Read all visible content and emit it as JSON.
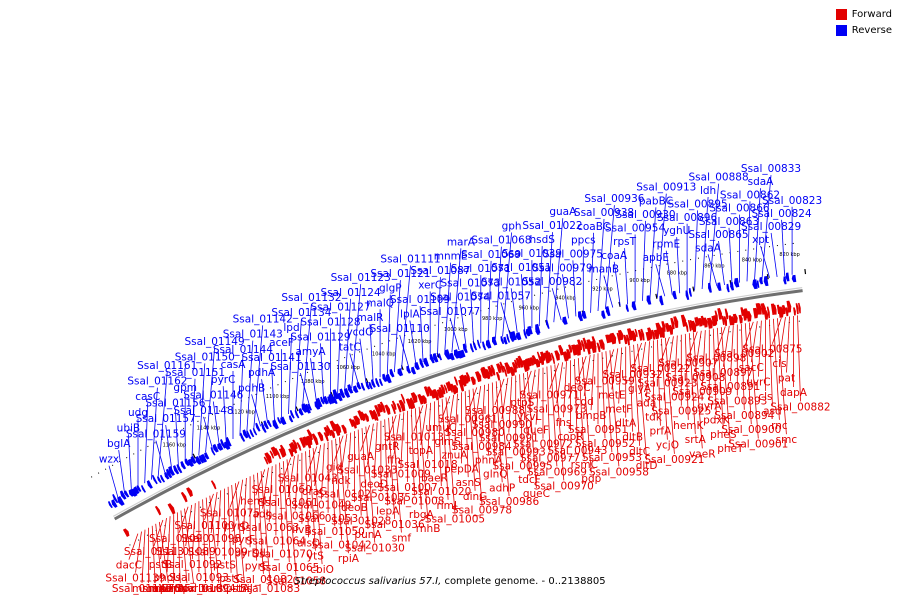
{
  "legend": {
    "items": [
      {
        "label": "Forward",
        "color": "#e20000"
      },
      {
        "label": "Reverse",
        "color": "#0000f5"
      }
    ]
  },
  "caption": {
    "organism": "Streptococcus salivarius 57.I,",
    "rest": " complete genome. - 0..2138805"
  },
  "scale_labels": [
    "1160 kbp",
    "1140 kbp",
    "1120 kbp",
    "1100 kbp",
    "1080 kbp",
    "1060 kbp",
    "1040 kbp",
    "1020 kbp",
    "1000 kbp",
    "980 kbp",
    "960 kbp",
    "940 kbp",
    "920 kbp",
    "900 kbp",
    "880 kbp",
    "860 kbp",
    "840 kbp",
    "820 kbp"
  ],
  "colors": {
    "forward": "#e20000",
    "reverse": "#0000f5",
    "backbone": "#7a7a7a"
  },
  "reverse_labels": [
    "wzx",
    "bglA",
    "ubiB",
    "udg",
    "casC",
    "Ssal_01162",
    "Ssal_01161",
    "Ssal_01159",
    "Ssal_01157",
    "Ssal_01156",
    "gpm",
    "Ssal_01151",
    "Ssal_01150",
    "Ssal_01149",
    "Ssal_01148",
    "Ssal_01146",
    "pyrC",
    "casA",
    "Ssal_01144",
    "Ssal_01143",
    "Ssal_01142",
    "pdhB",
    "pdhA",
    "Ssal_01141",
    "aceF",
    "lpd",
    "Ssal_01134",
    "Ssal_01132",
    "Ssal_01130",
    "amyA",
    "Ssal_01129",
    "Ssal_01128",
    "Ssal_01127",
    "Ssal_01124",
    "Ssal_01123",
    "tatC",
    "ycdO",
    "malR",
    "malQ",
    "glgP",
    "Ssal_01121",
    "Ssal_01111",
    "Ssal_01110",
    "lplA",
    "Ssal_01109",
    "xerC",
    "Ssal_01087",
    "mnmE",
    "marA",
    "Ssal_01077",
    "Ssal_01074",
    "Ssal_01073",
    "Ssal_01071",
    "Ssal_01069",
    "Ssal_01068",
    "gph",
    "Ssal_01057",
    "Ssal_01052",
    "Ssal_01051",
    "Ssal_01039",
    "hsdS",
    "Ssal_01022",
    "guaA",
    "Ssal_00982",
    "Ssal_00979",
    "Ssal_00975",
    "ppcs",
    "coaBC",
    "Ssal_00938",
    "Ssal_00936",
    "manB",
    "coaA",
    "rpsT",
    "Ssal_00954",
    "Ssal_00930",
    "pabBC",
    "Ssal_00913",
    "apbE",
    "rpmE",
    "yghU",
    "Ssal_00896",
    "Ssal_00895",
    "ldh",
    "Ssal_00888",
    "sdaA",
    "Ssal_00865",
    "Ssal_00863",
    "Ssal_00866",
    "Ssal_00862",
    "sdaA",
    "Ssal_00833",
    "xpt",
    "Ssal_00829",
    "Ssal_00824",
    "Ssal_00823"
  ],
  "forward_labels": [
    "dacC",
    "Ssal_01139",
    "Ssal_01140",
    "msmX",
    "malE",
    "malF",
    "malG",
    "Ssal_01113",
    "pstB",
    "phoU",
    "pepN",
    "ribF",
    "tpx",
    "uvrD",
    "Ssal_01090",
    "Ssal_01089",
    "Ssal_01092",
    "Ssal_01093",
    "Ssal_01094",
    "truB",
    "arsC",
    "Ssal_01100",
    "Ssal_01098",
    "Ssal_01099",
    "pstS",
    "pstC",
    "pstA",
    "thiJ",
    "Ssal_01075",
    "pyrD",
    "pyrF",
    "pyrDII",
    "pyrE",
    "Ssal_01082",
    "Ssal_01083",
    "hemH",
    "adh",
    "Ssal_01063",
    "Ssal_01064",
    "Ssal_01070",
    "Ssal_01065",
    "Ssal_01058",
    "Ssal_01060",
    "Ssal_01061",
    "Ssal_01066",
    "ilvB",
    "alsD",
    "ytS",
    "cbiO",
    "Ssal_01043",
    "draG",
    "Ssal_01049",
    "Ssal_01053",
    "Ssal_01050",
    "Ssal_01042",
    "rpiA",
    "gid",
    "ndk",
    "Ssal_01025",
    "deoB",
    "Ssal_01028",
    "punA",
    "Ssal_01030",
    "guaA",
    "Ssal_01033",
    "deoD",
    "Ssal_01035",
    "lepA",
    "Ssal_01036",
    "smf",
    "gntR",
    "ffh",
    "Ssal_01009",
    "Ssal_01007",
    "Ssal_01008",
    "rbgA",
    "rnhB",
    "Ssal_01013",
    "topA",
    "Ssal_01018",
    "baeR",
    "Ssal_01020",
    "rimL",
    "Ssal_01005",
    "umuC",
    "glmS",
    "znuA",
    "pepDA",
    "asnS",
    "dinG",
    "Ssal_00978",
    "Ssal_00961",
    "Ssal_00980",
    "Ssal_00984",
    "phnA",
    "glnQ",
    "adhP",
    "Ssal_00986",
    "Ssal_00988",
    "Ssal_00990",
    "Ssal_00991",
    "Ssal_00993",
    "Ssal_00995",
    "tdcF",
    "queC",
    "ptpS",
    "ykvL",
    "queF",
    "Ssal_00972",
    "Ssal_00977",
    "Ssal_00969",
    "Ssal_00970",
    "Ssal_00971",
    "Ssal_00973",
    "fhs",
    "copR",
    "Ssal_00943",
    "rsmC",
    "pdp",
    "deoC",
    "cdd",
    "bmpB",
    "Ssal_00951",
    "Ssal_00952",
    "Ssal_00953",
    "Ssal_00958",
    "Ssal_00959",
    "metE",
    "metF",
    "dltA",
    "dltB",
    "dltC",
    "dltD",
    "Ssal_00932",
    "glyA",
    "ada",
    "tdk",
    "prfA",
    "ycjO",
    "Ssal_00921",
    "Ssal_00922",
    "Ssal_00923",
    "Ssal_00924",
    "Ssal_00925",
    "hemK",
    "srtA",
    "vaeR",
    "Ssal_00907",
    "Ssal_00908",
    "Ssal_00909",
    "gyrA",
    "pdxK",
    "pheS",
    "pheT",
    "Ssal_00898",
    "Ssal_00897",
    "Ssal_00891",
    "Ssal_00893",
    "Ssal_00894",
    "Ssal_00900",
    "Ssal_00901",
    "Ssal_00902",
    "sacC",
    "uvrC",
    "cls",
    "asd",
    "rnc",
    "smc",
    "Ssal_00875",
    "cls",
    "pat",
    "dapA",
    "Ssal_00882"
  ]
}
